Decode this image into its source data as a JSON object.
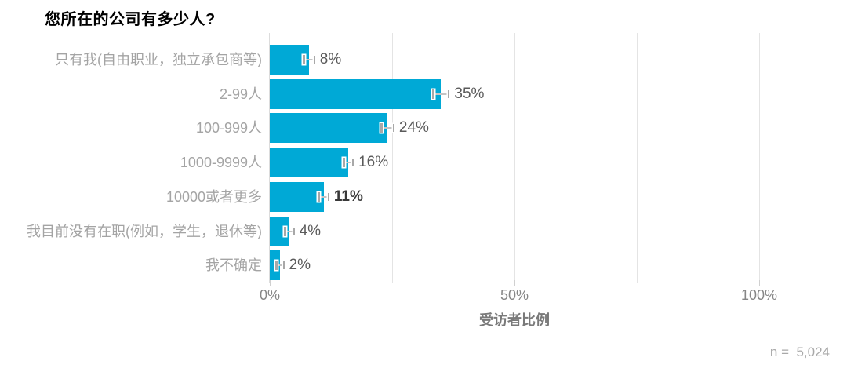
{
  "page": {
    "background": "#ffffff"
  },
  "chart_data": {
    "type": "bar",
    "orientation": "horizontal",
    "title": "您所在的公司有多少人?",
    "xlabel": "受访者比例",
    "categories": [
      "只有我(自由职业，独立承包商等)",
      "2-99人",
      "100-999人",
      "1000-9999人",
      "10000或者更多",
      "我目前没有在职(例如，学生，退休等)",
      "我不确定"
    ],
    "values": [
      8,
      35,
      24,
      16,
      11,
      4,
      2
    ],
    "value_labels": [
      "8%",
      "35%",
      "24%",
      "16%",
      "11%",
      "4%",
      "2%"
    ],
    "errors_pct": [
      1.1,
      1.6,
      1.3,
      1.0,
      1.0,
      0.9,
      0.8
    ],
    "emphasized_index": 4,
    "xlim": [
      0,
      100
    ],
    "xticks": [
      {
        "value": 0,
        "label": "0%"
      },
      {
        "value": 50,
        "label": "50%"
      },
      {
        "value": 100,
        "label": "100%"
      }
    ],
    "gridline_values": [
      25,
      50,
      75,
      100
    ],
    "grid": true,
    "legend_position": "none",
    "sample_note": "n =  5,024",
    "colors": {
      "bar": "#00a9d6",
      "gridline": "#e4e4e4",
      "zero_line": "#dcdcdc",
      "error_bar_line": "#c4c4c4",
      "error_bar_cap": "#a8a8a8",
      "category_label": "#a4a4a4",
      "value_label": "#5a5a5a",
      "value_label_emphasized": "#383838",
      "tick_mark": "#d0d0d0",
      "tick_label": "#868686",
      "axis_title": "#7a7a7a",
      "note": "#a9a9a9",
      "title": "#000000"
    }
  }
}
